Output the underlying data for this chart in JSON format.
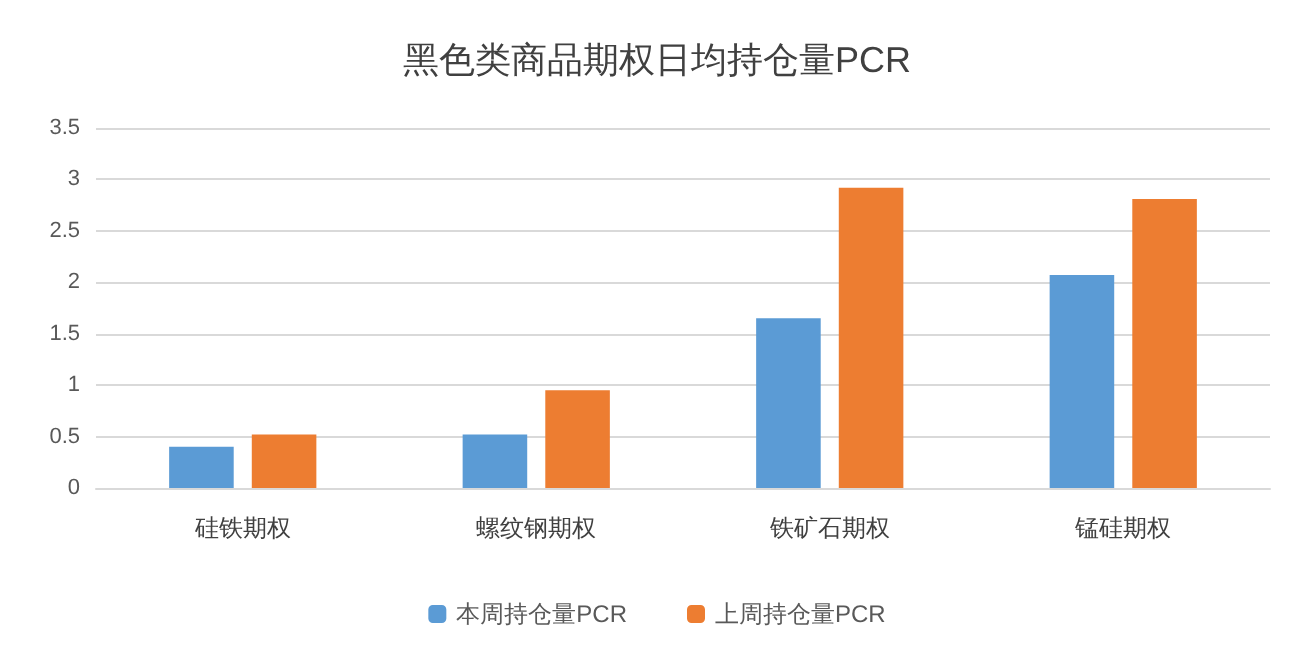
{
  "chart_data": {
    "type": "bar",
    "title": "黑色类商品期权日均持仓量PCR",
    "categories": [
      "硅铁期权",
      "螺纹钢期权",
      "铁矿石期权",
      "锰硅期权"
    ],
    "series": [
      {
        "name": "本周持仓量PCR",
        "color": "#5b9bd5",
        "values": [
          0.4,
          0.52,
          1.65,
          2.07
        ]
      },
      {
        "name": "上周持仓量PCR",
        "color": "#ed7d31",
        "values": [
          0.52,
          0.95,
          2.92,
          2.81
        ]
      }
    ],
    "ylim": [
      0,
      3.5
    ],
    "yticks": [
      0,
      0.5,
      1,
      1.5,
      2,
      2.5,
      3,
      3.5
    ],
    "grid": "y",
    "legend": "bottom"
  }
}
